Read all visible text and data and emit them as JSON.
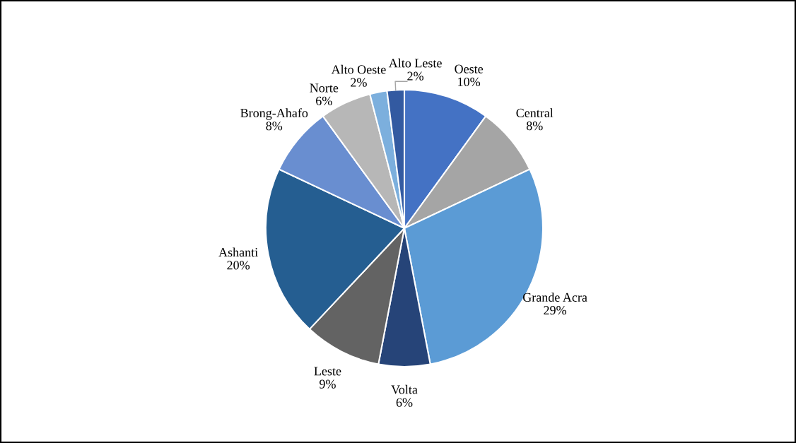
{
  "chart_data": {
    "type": "pie",
    "value_labels": [
      "10%",
      "8%",
      "29%",
      "6%",
      "9%",
      "20%",
      "8%",
      "6%",
      "2%",
      "2%"
    ],
    "categories": [
      "Oeste",
      "Central",
      "Grande Acra",
      "Volta",
      "Leste",
      "Ashanti",
      "Brong-Ahafo",
      "Norte",
      "Alto Oeste",
      "Alto Leste"
    ],
    "values": [
      10,
      8,
      29,
      6,
      9,
      20,
      8,
      6,
      2,
      2
    ],
    "colors": [
      "#4472c4",
      "#a5a5a5",
      "#5b9bd5",
      "#264478",
      "#636363",
      "#255e91",
      "#698ed0",
      "#b7b7b7",
      "#7cafdd",
      "#335aa1"
    ]
  }
}
